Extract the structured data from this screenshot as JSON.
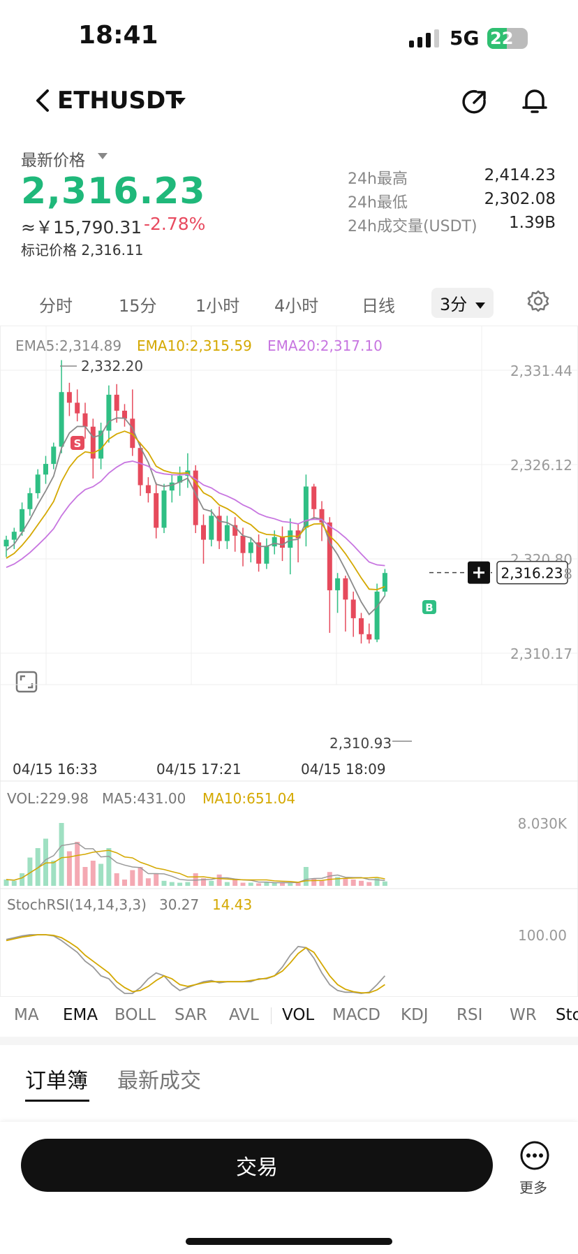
{
  "status_bar": {
    "time": "18:41",
    "network": "5G",
    "battery": "22"
  },
  "header": {
    "pair": "ETHUSDT"
  },
  "price": {
    "label": "最新价格",
    "last": "2,316.23",
    "cny": "≈￥15,790.31",
    "change": "-2.78%",
    "mark_price": "标记价格 2,316.11"
  },
  "stats": [
    {
      "label": "24h最高",
      "value": "2,414.23"
    },
    {
      "label": "24h最低",
      "value": "2,302.08"
    },
    {
      "label": "24h成交量(USDT)",
      "value": "1.39B"
    }
  ],
  "timeframes": [
    "分时",
    "15分",
    "1小时",
    "4小时",
    "日线"
  ],
  "active_timeframe": "3分",
  "colors": {
    "up": "#2fbf84",
    "down": "#e64a5c",
    "ema5": "#8a8a8a",
    "ema10": "#d4a800",
    "ema20": "#c775e0"
  },
  "chart": {
    "ema_legend": {
      "ema5": "EMA5:2,314.89",
      "ema10": "EMA10:2,315.59",
      "ema20": "EMA20:2,317.10"
    },
    "y_ticks": [
      "2,331.44",
      "2,326.12",
      "2,320.80",
      "2,310.17"
    ],
    "y_tick_values": [
      2331.44,
      2326.12,
      2320.8,
      2310.17
    ],
    "high_label": "2,332.20",
    "low_label": "2,310.93",
    "last_label": "2,316.23",
    "last_value": 2316.23,
    "last_tick_partial": "8",
    "x_ticks": [
      "04/15 16:33",
      "04/15 17:21",
      "04/15 18:09"
    ],
    "markers": {
      "sell": "S",
      "buy": "B"
    }
  },
  "volume": {
    "vol": "VOL:229.98",
    "ma5": "MA5:431.00",
    "ma10": "MA10:651.04",
    "max_label": "8.030K"
  },
  "stochrsi": {
    "label": "StochRSI(14,14,3,3)",
    "k": "30.27",
    "d": "14.43",
    "max_label": "100.00"
  },
  "indicators": [
    "MA",
    "EMA",
    "BOLL",
    "SAR",
    "AVL",
    "VOL",
    "MACD",
    "KDJ",
    "RSI",
    "WR",
    "Sto"
  ],
  "orderbook_tabs": [
    "订单簿",
    "最新成交"
  ],
  "bottom": {
    "trade": "交易",
    "more": "更多"
  }
}
